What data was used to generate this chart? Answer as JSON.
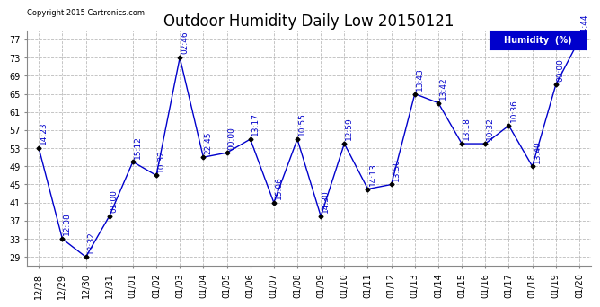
{
  "title": "Outdoor Humidity Daily Low 20150121",
  "copyright": "Copyright 2015 Cartronics.com",
  "legend_label": "Humidity  (%)",
  "x_labels": [
    "12/28",
    "12/29",
    "12/30",
    "12/31",
    "01/01",
    "01/02",
    "01/03",
    "01/04",
    "01/05",
    "01/06",
    "01/07",
    "01/08",
    "01/09",
    "01/10",
    "01/11",
    "01/12",
    "01/13",
    "01/14",
    "01/15",
    "01/16",
    "01/17",
    "01/18",
    "01/19",
    "01/20"
  ],
  "y_values": [
    53,
    33,
    29,
    38,
    50,
    47,
    73,
    51,
    52,
    55,
    41,
    55,
    38,
    54,
    44,
    45,
    65,
    63,
    54,
    54,
    58,
    49,
    67,
    77
  ],
  "time_labels": [
    "14:23",
    "12:08",
    "13:32",
    "01:00",
    "15:12",
    "10:32",
    "02:46",
    "22:45",
    "00:00",
    "13:17",
    "15:06",
    "10:55",
    "14:30",
    "12:59",
    "14:13",
    "13:50",
    "13:43",
    "13:42",
    "13:18",
    "10:32",
    "10:36",
    "13:40",
    "00:00",
    "14:44"
  ],
  "ylim": [
    27,
    79
  ],
  "yticks": [
    29,
    33,
    37,
    41,
    45,
    49,
    53,
    57,
    61,
    65,
    69,
    73,
    77
  ],
  "line_color": "#0000CC",
  "marker_color": "#000000",
  "bg_color": "#ffffff",
  "grid_color": "#bbbbbb",
  "title_fontsize": 12,
  "tick_fontsize": 7,
  "annotation_fontsize": 6.5
}
